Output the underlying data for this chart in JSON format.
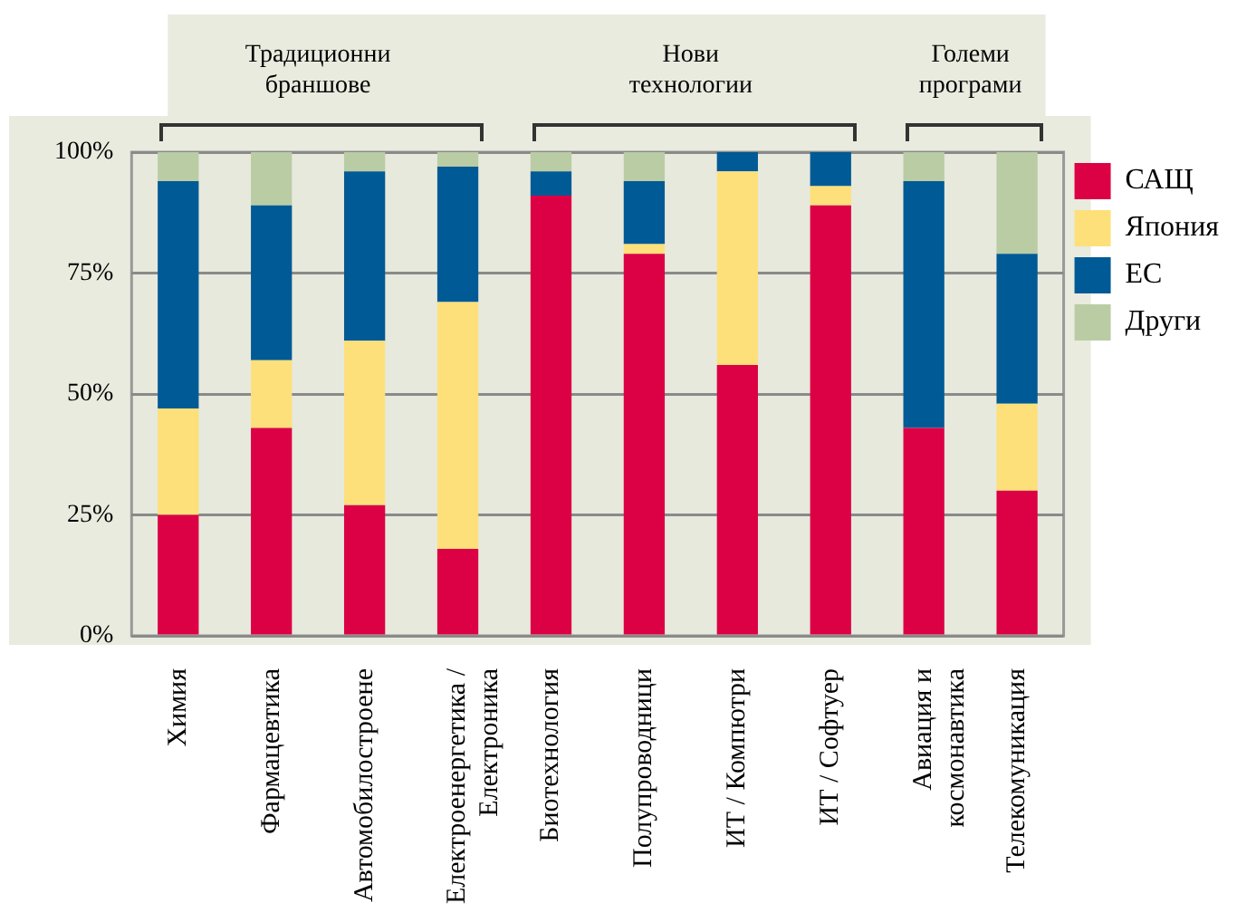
{
  "chart_data": {
    "type": "bar",
    "stacked": true,
    "categories": [
      "Химия",
      "Фармацевтика",
      "Автомобилостроене",
      "Електроенергетика /\nЕлектроника",
      "Биотехнология",
      "Полупроводници",
      "ИТ / Компютри",
      "ИТ / Софтуер",
      "Авиация и\nкосмонавтика",
      "Телекомуникация"
    ],
    "series": [
      {
        "name": "САЩ",
        "color": "#dc0045",
        "values": [
          25,
          43,
          27,
          18,
          91,
          79,
          56,
          89,
          43,
          30
        ]
      },
      {
        "name": "Япония",
        "color": "#fde07a",
        "values": [
          22,
          14,
          34,
          51,
          0,
          2,
          40,
          4,
          0,
          18
        ]
      },
      {
        "name": "ЕС",
        "color": "#005a96",
        "values": [
          47,
          32,
          35,
          28,
          5,
          13,
          4,
          7,
          51,
          31
        ]
      },
      {
        "name": "Други",
        "color": "#bacca4",
        "values": [
          6,
          11,
          4,
          3,
          4,
          6,
          0,
          0,
          6,
          21
        ]
      }
    ],
    "ylim": [
      0,
      100
    ],
    "yticks": [
      {
        "value": 0,
        "label": "0%"
      },
      {
        "value": 25,
        "label": "25%"
      },
      {
        "value": 50,
        "label": "50%"
      },
      {
        "value": 75,
        "label": "75%"
      },
      {
        "value": 100,
        "label": "100%"
      }
    ],
    "grid": "y",
    "legend": "top right",
    "annotations": [
      "Традиционни\nбраншове",
      "Нови\nтехнологии",
      "Големи\nпрограми"
    ]
  }
}
